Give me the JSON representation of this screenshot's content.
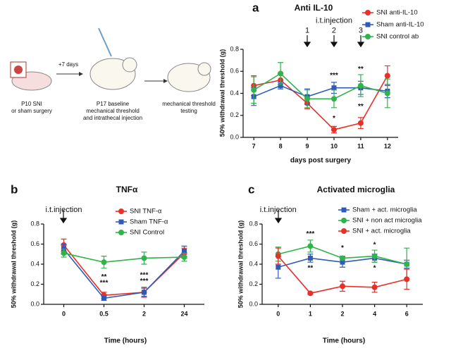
{
  "diagram": {
    "labels": [
      "P10 SNI",
      "or sham surgery",
      "+7 days",
      "P17 baseline",
      "mechanical threshold",
      "and intrathecal injection",
      "mechanical threshold",
      "testing"
    ]
  },
  "chart_data": [
    {
      "type": "line",
      "panel": "a",
      "title": "Anti IL-10",
      "x_label": "days post surgery",
      "y_label": "50% withdrawal threshold (g)",
      "x": [
        7,
        8,
        9,
        10,
        11,
        12
      ],
      "xlim": [
        6.6,
        12.4
      ],
      "xticks": [
        7,
        8,
        9,
        10,
        11,
        12
      ],
      "ylim": [
        0,
        0.8
      ],
      "yticks": [
        {
          "value": 0,
          "label": "0.0"
        },
        0.2,
        0.4,
        0.6,
        0.8
      ],
      "legend": "upper right",
      "series": [
        {
          "name": "SNI anti-IL-10",
          "color": "#e8302a",
          "marker": "circle",
          "values": [
            0.47,
            0.52,
            0.31,
            0.07,
            0.13,
            0.56
          ],
          "errors": [
            0.09,
            0.06,
            0.05,
            0.03,
            0.05,
            0.09
          ]
        },
        {
          "name": "Sham anti-IL-10",
          "color": "#2f5bb7",
          "marker": "square",
          "values": [
            0.37,
            0.47,
            0.37,
            0.45,
            0.45,
            0.42
          ],
          "errors": [
            0.08,
            0.03,
            0.07,
            0.05,
            0.06,
            0.06
          ]
        },
        {
          "name": "SNI  control ab",
          "color": "#2fb34a",
          "marker": "circle",
          "values": [
            0.43,
            0.58,
            0.35,
            0.35,
            0.47,
            0.4
          ],
          "errors": [
            0.12,
            0.1,
            0.08,
            0.08,
            0.1,
            0.13
          ]
        }
      ],
      "annotations": [
        {
          "text": "i.t.injection",
          "x": 10,
          "y": 1.06
        },
        {
          "text": "1",
          "x": 9,
          "y": 0.97
        },
        {
          "text": "2",
          "x": 10,
          "y": 0.97
        },
        {
          "text": "3",
          "x": 11,
          "y": 0.97
        },
        {
          "text": "***",
          "x": 10,
          "y": 0.56
        },
        {
          "text": "*",
          "x": 10,
          "y": 0.17
        },
        {
          "text": "**",
          "x": 11,
          "y": 0.62
        },
        {
          "text": "**",
          "x": 11,
          "y": 0.28
        }
      ]
    },
    {
      "type": "line",
      "panel": "b",
      "title": "TNFα",
      "x_label": "Time (hours)",
      "y_label": "50% withdrawal threshold (g)",
      "categories": [
        "0",
        "0.5",
        "2",
        "24"
      ],
      "ylim": [
        0,
        0.8
      ],
      "yticks": [
        {
          "value": 0,
          "label": "0.0"
        },
        0.2,
        0.4,
        0.6,
        0.8
      ],
      "legend": "upper right",
      "series": [
        {
          "name": "SNI TNF-α",
          "color": "#e8302a",
          "marker": "circle",
          "values": [
            0.59,
            0.09,
            0.12,
            0.51
          ],
          "errors": [
            0.06,
            0.03,
            0.05,
            0.05
          ]
        },
        {
          "name": "Sham TNF-α",
          "color": "#2f5bb7",
          "marker": "square",
          "values": [
            0.55,
            0.06,
            0.12,
            0.53
          ],
          "errors": [
            0.05,
            0.02,
            0.04,
            0.05
          ]
        },
        {
          "name": "SNI Control",
          "color": "#2fb34a",
          "marker": "circle",
          "values": [
            0.51,
            0.42,
            0.46,
            0.47
          ],
          "errors": [
            0.04,
            0.06,
            0.06,
            0.04
          ]
        }
      ],
      "annotations": [
        {
          "text": "i.t.injection",
          "x": 0,
          "y": 0.94
        },
        {
          "text": "**",
          "x": 1,
          "y": 0.27
        },
        {
          "text": "***",
          "x": 1,
          "y": 0.21
        },
        {
          "text": "***",
          "x": 2,
          "y": 0.29
        },
        {
          "text": "***",
          "x": 2,
          "y": 0.23
        }
      ]
    },
    {
      "type": "line",
      "panel": "c",
      "title": "Activated microglia",
      "x_label": "Time (hours)",
      "y_label": "50% withdrawal threshold (g)",
      "categories": [
        "0",
        "1",
        "2",
        "4",
        "6"
      ],
      "ylim": [
        0,
        0.8
      ],
      "yticks": [
        {
          "value": 0,
          "label": "0.0"
        },
        0.2,
        0.4,
        0.6,
        0.8
      ],
      "legend": "upper right",
      "series": [
        {
          "name": "Sham + act. microglia",
          "color": "#2f5bb7",
          "marker": "square",
          "values": [
            0.37,
            0.46,
            0.42,
            0.46,
            0.4
          ],
          "errors": [
            0.11,
            0.04,
            0.05,
            0.04,
            0.04
          ]
        },
        {
          "name": "SNI + non act microglia",
          "color": "#2fb34a",
          "marker": "circle",
          "values": [
            0.5,
            0.58,
            0.46,
            0.48,
            0.4
          ],
          "errors": [
            0.07,
            0.06,
            0.02,
            0.06,
            0.16
          ]
        },
        {
          "name": "SNI + act. microglia",
          "color": "#e8302a",
          "marker": "circle",
          "values": [
            0.48,
            0.11,
            0.18,
            0.17,
            0.25
          ],
          "errors": [
            0.08,
            0.01,
            0.05,
            0.05,
            0.1
          ]
        }
      ],
      "annotations": [
        {
          "text": "i.t.injection",
          "x": 0,
          "y": 0.94
        },
        {
          "text": "***",
          "x": 1,
          "y": 0.7
        },
        {
          "text": "**",
          "x": 1,
          "y": 0.36
        },
        {
          "text": "*",
          "x": 2,
          "y": 0.56
        },
        {
          "text": "*",
          "x": 3,
          "y": 0.59
        },
        {
          "text": "*",
          "x": 3,
          "y": 0.36
        }
      ]
    }
  ]
}
